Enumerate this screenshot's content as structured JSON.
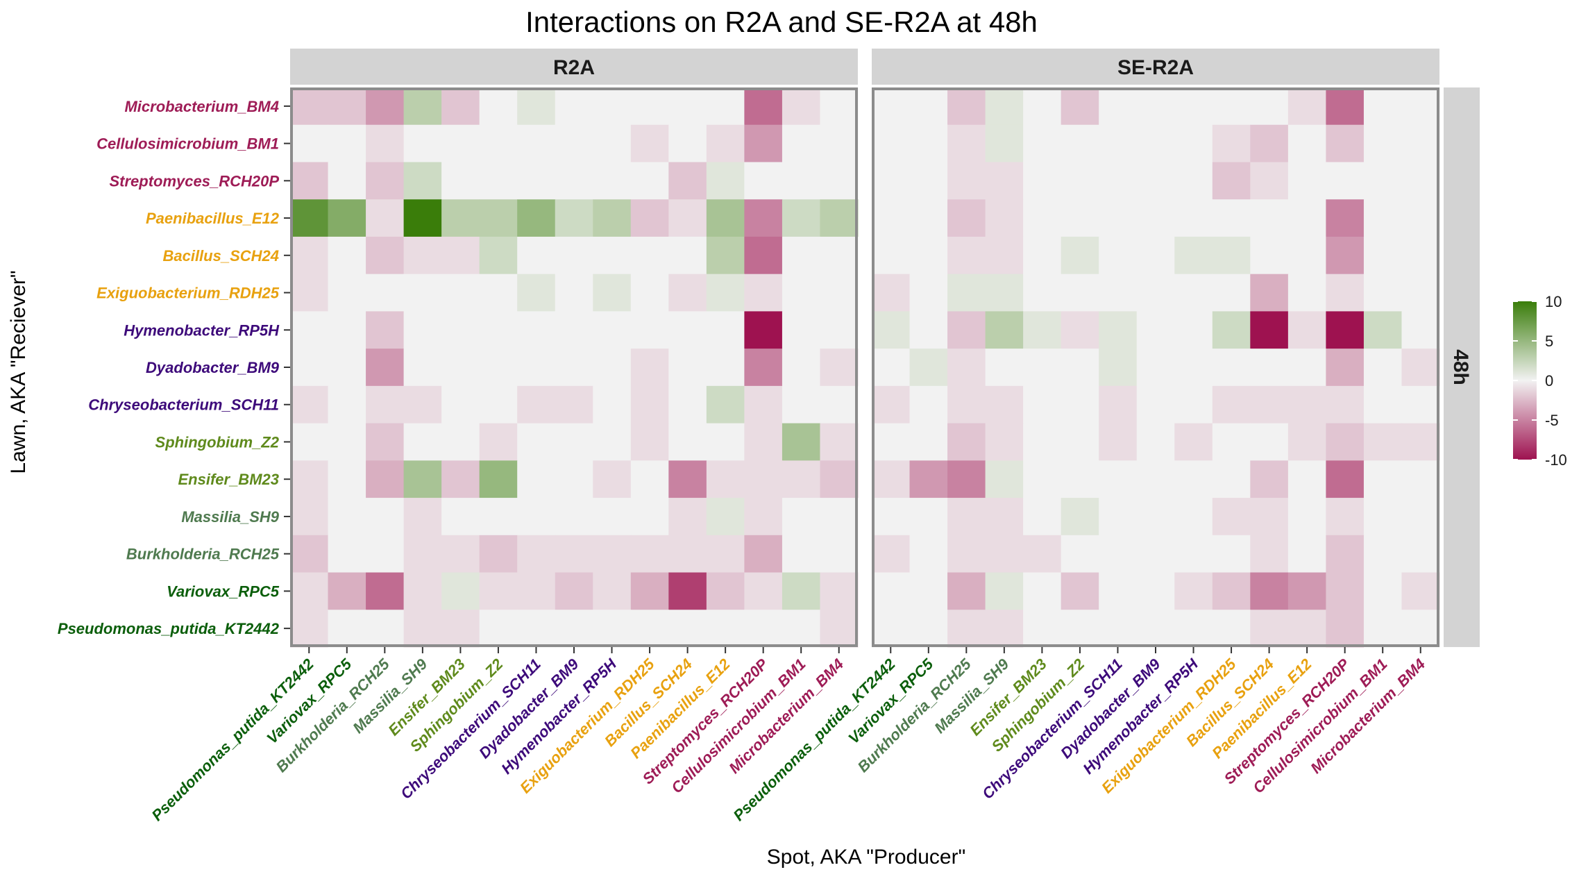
{
  "chart_data": {
    "type": "heatmap",
    "title": "Interactions on R2A and SE-R2A at 48h",
    "xlabel": "Spot, AKA \"Producer\"",
    "ylabel": "Lawn, AKA \"Reciever\"",
    "row_facet": "48h",
    "panels": [
      "R2A",
      "SE-R2A"
    ],
    "rows": [
      "Microbacterium_BM4",
      "Cellulosimicrobium_BM1",
      "Streptomyces_RCH20P",
      "Paenibacillus_E12",
      "Bacillus_SCH24",
      "Exiguobacterium_RDH25",
      "Hymenobacter_RP5H",
      "Dyadobacter_BM9",
      "Chryseobacterium_SCH11",
      "Sphingobium_Z2",
      "Ensifer_BM23",
      "Massilia_SH9",
      "Burkholderia_RCH25",
      "Variovax_RPC5",
      "Pseudomonas_putida_KT2442"
    ],
    "columns": [
      "Pseudomonas_putida_KT2442",
      "Variovax_RPC5",
      "Burkholderia_RCH25",
      "Massilia_SH9",
      "Ensifer_BM23",
      "Sphingobium_Z2",
      "Chryseobacterium_SCH11",
      "Dyadobacter_BM9",
      "Hymenobacter_RP5H",
      "Exiguobacterium_RDH25",
      "Bacillus_SCH24",
      "Paenibacillus_E12",
      "Streptomyces_RCH20P",
      "Cellulosimicrobium_BM1",
      "Microbacterium_BM4"
    ],
    "label_colors": {
      "Microbacterium_BM4": "#9e1c56",
      "Cellulosimicrobium_BM1": "#9e1c56",
      "Streptomyces_RCH20P": "#9e1c56",
      "Paenibacillus_E12": "#e8a10f",
      "Bacillus_SCH24": "#e8a10f",
      "Exiguobacterium_RDH25": "#e8a10f",
      "Hymenobacter_RP5H": "#3d0a7a",
      "Dyadobacter_BM9": "#3d0a7a",
      "Chryseobacterium_SCH11": "#3d0a7a",
      "Sphingobium_Z2": "#5f8a1c",
      "Ensifer_BM23": "#5f8a1c",
      "Massilia_SH9": "#4f7a4f",
      "Burkholderia_RCH25": "#4f7a4f",
      "Variovax_RPC5": "#0b5e0b",
      "Pseudomonas_putida_KT2442": "#0b5e0b"
    },
    "values": {
      "R2A": [
        [
          -2,
          -2,
          -4,
          3,
          -2,
          0,
          1,
          0,
          0,
          0,
          0,
          0,
          -6,
          -1,
          0
        ],
        [
          0,
          0,
          -1,
          0,
          0,
          0,
          0,
          0,
          0,
          -1,
          0,
          -1,
          -4,
          0,
          0
        ],
        [
          -2,
          0,
          -2,
          2,
          0,
          0,
          0,
          0,
          0,
          0,
          -2,
          1,
          0,
          0,
          0
        ],
        [
          8,
          6,
          -1,
          10,
          3,
          3,
          5,
          2,
          3,
          -2,
          -1,
          4,
          -5,
          2,
          3
        ],
        [
          -1,
          0,
          -2,
          -1,
          -1,
          2,
          0,
          0,
          0,
          0,
          0,
          3,
          -6,
          0,
          0
        ],
        [
          -1,
          0,
          0,
          0,
          0,
          0,
          1,
          0,
          1,
          0,
          -1,
          1,
          -1,
          0,
          0
        ],
        [
          0,
          0,
          -2,
          0,
          0,
          0,
          0,
          0,
          0,
          0,
          0,
          0,
          -10,
          0,
          0
        ],
        [
          0,
          0,
          -4,
          0,
          0,
          0,
          0,
          0,
          0,
          -1,
          0,
          0,
          -5,
          0,
          -1
        ],
        [
          -1,
          0,
          -1,
          -1,
          0,
          0,
          -1,
          -1,
          0,
          -1,
          0,
          2,
          -1,
          0,
          0
        ],
        [
          0,
          0,
          -2,
          0,
          0,
          -1,
          0,
          0,
          0,
          -1,
          0,
          0,
          -1,
          4,
          -1
        ],
        [
          -1,
          0,
          -3,
          4,
          -2,
          5,
          0,
          0,
          -1,
          0,
          -5,
          -1,
          -1,
          -1,
          -2
        ],
        [
          -1,
          0,
          0,
          -1,
          0,
          0,
          0,
          0,
          0,
          0,
          -1,
          1,
          -1,
          0,
          0
        ],
        [
          -2,
          0,
          0,
          -1,
          -1,
          -2,
          -1,
          -1,
          -1,
          -1,
          -1,
          -1,
          -3,
          0,
          0
        ],
        [
          -1,
          -3,
          -6,
          -1,
          1,
          -1,
          -1,
          -2,
          -1,
          -3,
          -8,
          -2,
          -1,
          2,
          -1
        ],
        [
          -1,
          0,
          0,
          -1,
          -1,
          0,
          0,
          0,
          0,
          0,
          0,
          0,
          0,
          0,
          -1
        ]
      ],
      "SE-R2A": [
        [
          0,
          0,
          -2,
          1,
          0,
          -2,
          0,
          0,
          0,
          0,
          0,
          -1,
          -6,
          0,
          0
        ],
        [
          0,
          0,
          -1,
          1,
          0,
          0,
          0,
          0,
          0,
          -1,
          -2,
          0,
          -2,
          0,
          0
        ],
        [
          0,
          0,
          -1,
          -1,
          0,
          0,
          0,
          0,
          0,
          -2,
          -1,
          0,
          0,
          0,
          0
        ],
        [
          0,
          0,
          -2,
          -1,
          0,
          0,
          0,
          0,
          0,
          0,
          0,
          0,
          -5,
          0,
          0
        ],
        [
          0,
          0,
          -1,
          -1,
          0,
          1,
          0,
          0,
          1,
          1,
          0,
          0,
          -4,
          0,
          0
        ],
        [
          -1,
          0,
          1,
          1,
          0,
          0,
          0,
          0,
          0,
          0,
          -3,
          0,
          -1,
          0,
          0
        ],
        [
          1,
          0,
          -2,
          3,
          1,
          -1,
          1,
          0,
          0,
          2,
          -10,
          -1,
          -10,
          2,
          0
        ],
        [
          0,
          1,
          -1,
          0,
          0,
          0,
          1,
          0,
          0,
          0,
          0,
          0,
          -3,
          0,
          -1
        ],
        [
          -1,
          0,
          -1,
          -1,
          0,
          0,
          -1,
          0,
          0,
          -1,
          -1,
          -1,
          -1,
          0,
          0
        ],
        [
          0,
          0,
          -2,
          -1,
          0,
          0,
          -1,
          0,
          -1,
          0,
          0,
          -1,
          -2,
          -1,
          -1
        ],
        [
          -1,
          -4,
          -5,
          1,
          0,
          0,
          0,
          0,
          0,
          0,
          -2,
          0,
          -6,
          0,
          0
        ],
        [
          0,
          0,
          -1,
          -1,
          0,
          1,
          0,
          0,
          0,
          -1,
          -1,
          0,
          -1,
          0,
          0
        ],
        [
          -1,
          0,
          -1,
          -1,
          -1,
          0,
          0,
          0,
          0,
          0,
          -1,
          0,
          -2,
          0,
          0
        ],
        [
          0,
          0,
          -3,
          1,
          0,
          -2,
          0,
          0,
          -1,
          -2,
          -5,
          -4,
          -2,
          0,
          -1
        ],
        [
          0,
          0,
          -1,
          -1,
          0,
          0,
          0,
          0,
          0,
          0,
          -1,
          -1,
          -2,
          0,
          0
        ]
      ]
    },
    "colorbar": {
      "ticks": [
        "10",
        "5",
        "0",
        "-5",
        "-10"
      ],
      "range": [
        -10,
        10
      ],
      "colors": {
        "high": "#3a7d0a",
        "mid": "#f2f2f2",
        "low": "#9e1250"
      }
    }
  }
}
